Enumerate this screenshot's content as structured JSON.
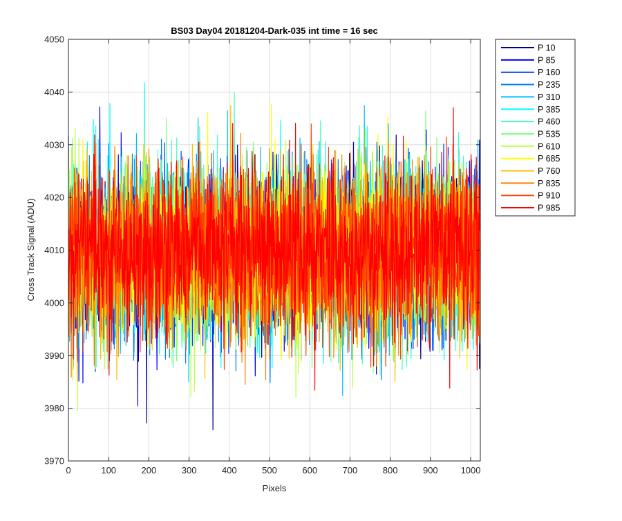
{
  "chart_data": {
    "type": "line",
    "title": "BS03 Day04 20181204-Dark-035 int time = 16 sec",
    "xlabel": "Pixels",
    "ylabel": "Cross Track Signal (ADU)",
    "xlim": [
      0,
      1024
    ],
    "ylim": [
      3970,
      4050
    ],
    "xticks": [
      "0",
      "100",
      "200",
      "300",
      "400",
      "500",
      "600",
      "700",
      "800",
      "900",
      "1000"
    ],
    "yticks": [
      "3970",
      "3980",
      "3990",
      "4000",
      "4010",
      "4020",
      "4030",
      "4040",
      "4050"
    ],
    "grid": true,
    "legend_position": "outside-top-right",
    "points_per_series": 1024,
    "series": [
      {
        "name": "P 10",
        "color": "#00008f",
        "mean": 4009.5,
        "std": 8.0
      },
      {
        "name": "P 85",
        "color": "#0000ff",
        "mean": 4009.5,
        "std": 8.0
      },
      {
        "name": "P 160",
        "color": "#0040ff",
        "mean": 4009.5,
        "std": 8.0
      },
      {
        "name": "P 235",
        "color": "#0080ff",
        "mean": 4009.5,
        "std": 8.0
      },
      {
        "name": "P 310",
        "color": "#00bfff",
        "mean": 4009.5,
        "std": 8.0
      },
      {
        "name": "P 385",
        "color": "#00ffff",
        "mean": 4009.5,
        "std": 8.0
      },
      {
        "name": "P 460",
        "color": "#40ffbf",
        "mean": 4009.5,
        "std": 8.0
      },
      {
        "name": "P 535",
        "color": "#80ff80",
        "mean": 4009.5,
        "std": 8.0
      },
      {
        "name": "P 610",
        "color": "#bfff40",
        "mean": 4009.5,
        "std": 8.0
      },
      {
        "name": "P 685",
        "color": "#ffff00",
        "mean": 4009.5,
        "std": 8.0
      },
      {
        "name": "P 760",
        "color": "#ffbf00",
        "mean": 4009.5,
        "std": 8.0
      },
      {
        "name": "P 835",
        "color": "#ff8000",
        "mean": 4009.5,
        "std": 8.0
      },
      {
        "name": "P 910",
        "color": "#ff4000",
        "mean": 4009.5,
        "std": 8.0
      },
      {
        "name": "P 985",
        "color": "#ff0000",
        "mean": 4009.5,
        "std": 8.0
      }
    ]
  }
}
